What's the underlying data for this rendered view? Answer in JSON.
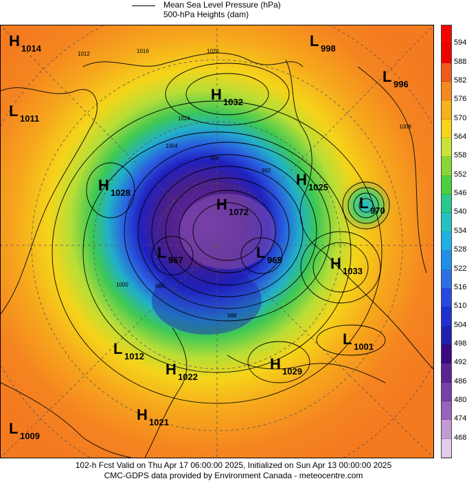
{
  "legend": {
    "mslp_label": "Mean Sea Level Pressure (hPa)",
    "heights_label": "500-hPa Heights (dam)"
  },
  "colorbar": {
    "levels": [
      "594",
      "588",
      "582",
      "576",
      "570",
      "564",
      "558",
      "552",
      "546",
      "540",
      "534",
      "528",
      "522",
      "516",
      "510",
      "504",
      "498",
      "492",
      "486",
      "480",
      "474",
      "468"
    ],
    "colors": [
      "#ee0000",
      "#f25a1c",
      "#f78a1e",
      "#f6b21a",
      "#f5d41a",
      "#cbe337",
      "#8bd636",
      "#4ccf3f",
      "#29c88a",
      "#25c3c0",
      "#1fb0e6",
      "#1f8fe6",
      "#2f6fe6",
      "#2848e0",
      "#2030d0",
      "#2020b0",
      "#3a0a80",
      "#5a2494",
      "#7a3ea8",
      "#9a62bb",
      "#c09ad2",
      "#e2ccea"
    ],
    "top_color": "#ff0000"
  },
  "pressure_centers": [
    {
      "type": "H",
      "value": "1014"
    },
    {
      "type": "L",
      "value": "998"
    },
    {
      "type": "L",
      "value": "996"
    },
    {
      "type": "H",
      "value": "1032"
    },
    {
      "type": "L",
      "value": "1011"
    },
    {
      "type": "H",
      "value": "1028"
    },
    {
      "type": "H",
      "value": "1025"
    },
    {
      "type": "H",
      "value": "1072"
    },
    {
      "type": "L",
      "value": "970"
    },
    {
      "type": "L",
      "value": "967"
    },
    {
      "type": "L",
      "value": "965"
    },
    {
      "type": "H",
      "value": "1033"
    },
    {
      "type": "L",
      "value": "1001"
    },
    {
      "type": "L",
      "value": "1012"
    },
    {
      "type": "H",
      "value": "1022"
    },
    {
      "type": "H",
      "value": "1029"
    },
    {
      "type": "H",
      "value": "1021"
    },
    {
      "type": "L",
      "value": "1009"
    }
  ],
  "isobar_labels": [
    "1012",
    "1016",
    "1020",
    "1024",
    "1004",
    "1000",
    "992",
    "996",
    "988",
    "984",
    "1008"
  ],
  "footer": {
    "line1": "102-h Fcst Valid on Thu Apr 17 06:00:00 2025, Initialized on Sun Apr 13 00:00:00 2025",
    "line2": "CMC-GDPS data provided by Environment Canada - meteocentre.com"
  }
}
